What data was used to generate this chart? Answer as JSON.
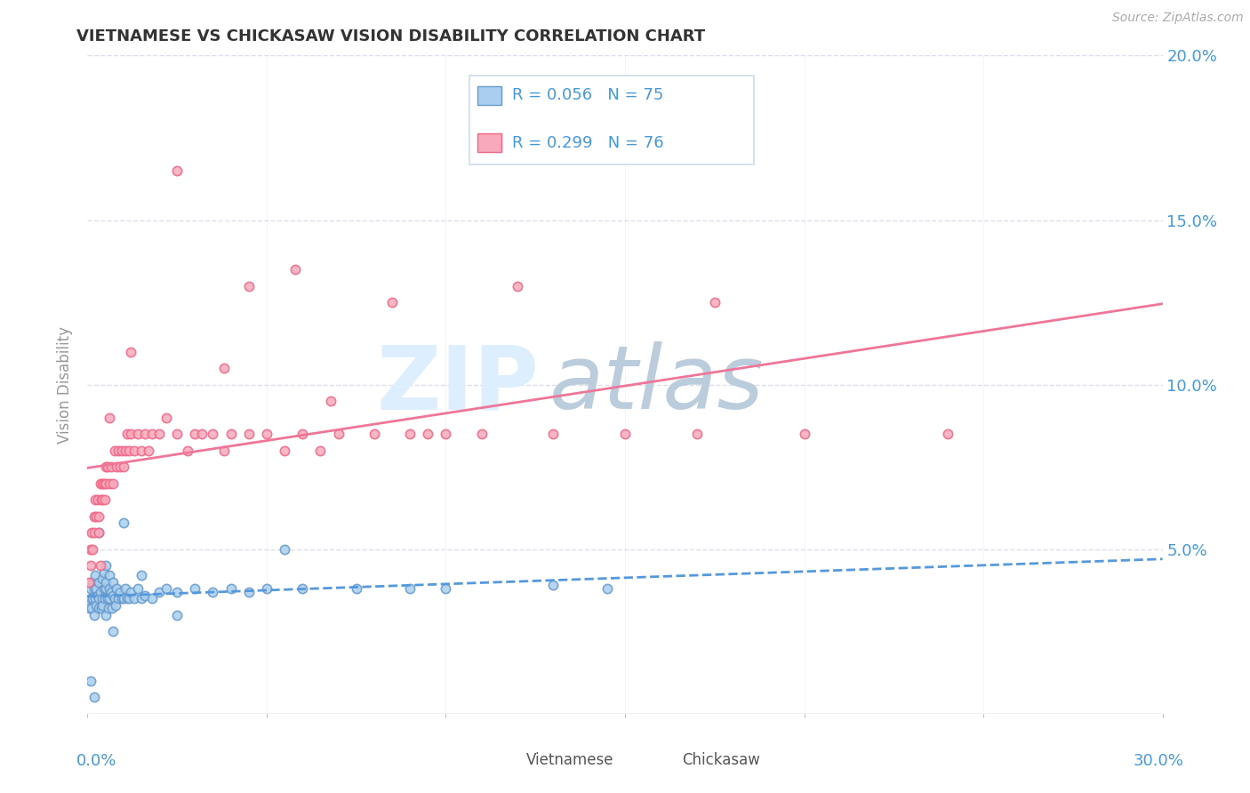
{
  "title": "VIETNAMESE VS CHICKASAW VISION DISABILITY CORRELATION CHART",
  "source": "Source: ZipAtlas.com",
  "ylabel": "Vision Disability",
  "xlim": [
    0.0,
    30.0
  ],
  "ylim": [
    0.0,
    20.0
  ],
  "yticks": [
    0.0,
    5.0,
    10.0,
    15.0,
    20.0
  ],
  "ytick_labels": [
    "",
    "5.0%",
    "10.0%",
    "15.0%",
    "20.0%"
  ],
  "xticks": [
    0.0,
    5.0,
    10.0,
    15.0,
    20.0,
    25.0,
    30.0
  ],
  "viet_R": 0.056,
  "viet_N": 75,
  "chick_R": 0.299,
  "chick_N": 76,
  "viet_color": "#aacfee",
  "chick_color": "#f8aabb",
  "viet_edge_color": "#6699cc",
  "chick_edge_color": "#ee6688",
  "viet_line_color": "#5599dd",
  "chick_line_color": "#ee7799",
  "legend_text_color": "#4499dd",
  "grid_color": "#ddddee",
  "watermark_zip_color": "#ddeeff",
  "watermark_atlas_color": "#bbccdd",
  "viet_scatter_x": [
    0.05,
    0.08,
    0.1,
    0.12,
    0.15,
    0.15,
    0.18,
    0.2,
    0.22,
    0.22,
    0.25,
    0.25,
    0.28,
    0.3,
    0.3,
    0.32,
    0.35,
    0.38,
    0.4,
    0.4,
    0.42,
    0.45,
    0.45,
    0.48,
    0.5,
    0.5,
    0.52,
    0.55,
    0.58,
    0.6,
    0.6,
    0.62,
    0.65,
    0.68,
    0.7,
    0.72,
    0.75,
    0.78,
    0.8,
    0.85,
    0.9,
    0.95,
    1.0,
    1.05,
    1.1,
    1.15,
    1.2,
    1.3,
    1.4,
    1.5,
    1.6,
    1.8,
    2.0,
    2.2,
    2.5,
    3.0,
    3.5,
    4.0,
    4.5,
    5.0,
    6.0,
    7.5,
    9.0,
    10.0,
    13.0,
    14.5,
    0.1,
    0.2,
    0.3,
    0.5,
    0.7,
    1.0,
    1.5,
    2.5,
    5.5
  ],
  "viet_scatter_y": [
    3.2,
    3.5,
    3.8,
    3.2,
    3.5,
    4.0,
    3.8,
    3.0,
    3.5,
    4.2,
    3.3,
    3.8,
    3.6,
    3.2,
    4.0,
    3.5,
    3.7,
    3.2,
    3.5,
    4.1,
    3.3,
    3.8,
    4.3,
    3.5,
    3.0,
    3.8,
    4.0,
    3.5,
    3.2,
    3.8,
    4.2,
    3.5,
    3.7,
    3.2,
    3.6,
    4.0,
    3.5,
    3.3,
    3.8,
    3.5,
    3.7,
    3.5,
    3.5,
    3.8,
    3.5,
    3.5,
    3.7,
    3.5,
    3.8,
    3.5,
    3.6,
    3.5,
    3.7,
    3.8,
    3.7,
    3.8,
    3.7,
    3.8,
    3.7,
    3.8,
    3.8,
    3.8,
    3.8,
    3.8,
    3.9,
    3.8,
    1.0,
    0.5,
    5.5,
    4.5,
    2.5,
    5.8,
    4.2,
    3.0,
    5.0
  ],
  "chick_scatter_x": [
    0.05,
    0.08,
    0.1,
    0.12,
    0.15,
    0.18,
    0.2,
    0.22,
    0.25,
    0.28,
    0.3,
    0.32,
    0.35,
    0.38,
    0.4,
    0.42,
    0.45,
    0.48,
    0.5,
    0.52,
    0.55,
    0.6,
    0.65,
    0.7,
    0.75,
    0.8,
    0.85,
    0.9,
    0.95,
    1.0,
    1.05,
    1.1,
    1.15,
    1.2,
    1.3,
    1.4,
    1.5,
    1.6,
    1.7,
    1.8,
    2.0,
    2.2,
    2.5,
    2.8,
    3.0,
    3.2,
    3.5,
    3.8,
    4.0,
    4.5,
    5.0,
    5.5,
    6.0,
    6.5,
    7.0,
    8.0,
    9.0,
    10.0,
    11.0,
    13.0,
    15.0,
    17.0,
    20.0,
    24.0,
    4.5,
    8.5,
    2.5,
    5.8,
    12.0,
    17.5,
    3.8,
    6.8,
    9.5,
    1.2,
    0.6,
    0.35
  ],
  "chick_scatter_y": [
    4.0,
    4.5,
    5.0,
    5.5,
    5.0,
    5.5,
    6.0,
    6.5,
    6.0,
    6.5,
    5.5,
    6.0,
    7.0,
    6.5,
    7.0,
    6.5,
    7.0,
    6.5,
    7.5,
    7.0,
    7.5,
    7.0,
    7.5,
    7.0,
    8.0,
    7.5,
    8.0,
    7.5,
    8.0,
    7.5,
    8.0,
    8.5,
    8.0,
    8.5,
    8.0,
    8.5,
    8.0,
    8.5,
    8.0,
    8.5,
    8.5,
    9.0,
    8.5,
    8.0,
    8.5,
    8.5,
    8.5,
    8.0,
    8.5,
    8.5,
    8.5,
    8.0,
    8.5,
    8.0,
    8.5,
    8.5,
    8.5,
    8.5,
    8.5,
    8.5,
    8.5,
    8.5,
    8.5,
    8.5,
    13.0,
    12.5,
    16.5,
    13.5,
    13.0,
    12.5,
    10.5,
    9.5,
    8.5,
    11.0,
    9.0,
    4.5
  ]
}
